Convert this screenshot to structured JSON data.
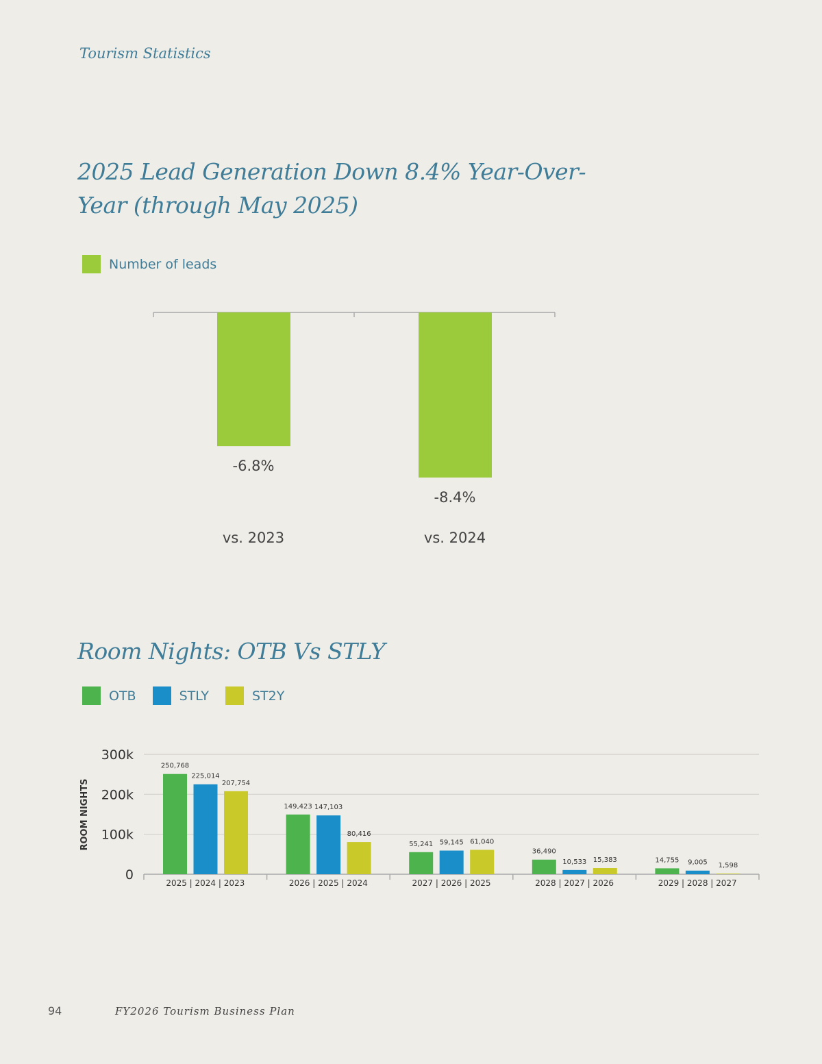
{
  "header": {
    "section": "Tourism Statistics"
  },
  "chart_data": [
    {
      "type": "bar",
      "title": "2025 Lead Generation Down 8.4% Year-Over-Year (through May 2025)",
      "legend": [
        "Number of leads"
      ],
      "categories": [
        "vs. 2023",
        "vs. 2024"
      ],
      "values": [
        -6.8,
        -8.4
      ],
      "labels": [
        "-6.8%",
        "-8.4%"
      ],
      "ylim": [
        -9.5,
        0
      ],
      "color": "#9bcb3b"
    },
    {
      "type": "bar",
      "title": "Room Nights: OTB Vs STLY",
      "ylabel": "ROOM NIGHTS",
      "ylim": [
        0,
        300000
      ],
      "yticks": [
        0,
        100000,
        200000,
        300000
      ],
      "ytick_labels": [
        "0",
        "100k",
        "200k",
        "300k"
      ],
      "categories": [
        "2025 | 2024 | 2023",
        "2026 | 2025 | 2024",
        "2027 | 2026 | 2025",
        "2028 | 2027 | 2026",
        "2029 | 2028 | 2027"
      ],
      "series": [
        {
          "name": "OTB",
          "color": "#4db34d",
          "values": [
            250768,
            149423,
            55241,
            36490,
            14755
          ],
          "labels": [
            "250,768",
            "149,423",
            "55,241",
            "36,490",
            "14,755"
          ]
        },
        {
          "name": "STLY",
          "color": "#1a8ec9",
          "values": [
            225014,
            147103,
            59145,
            10533,
            9005
          ],
          "labels": [
            "225,014",
            "147,103",
            "59,145",
            "10,533",
            "9,005"
          ]
        },
        {
          "name": "ST2Y",
          "color": "#c9c92a",
          "values": [
            207754,
            80416,
            61040,
            15383,
            1598
          ],
          "labels": [
            "207,754",
            "80,416",
            "61,040",
            "15,383",
            "1,598"
          ]
        }
      ]
    }
  ],
  "footer": {
    "page_number": "94",
    "title": "FY2026 Tourism Business Plan"
  }
}
